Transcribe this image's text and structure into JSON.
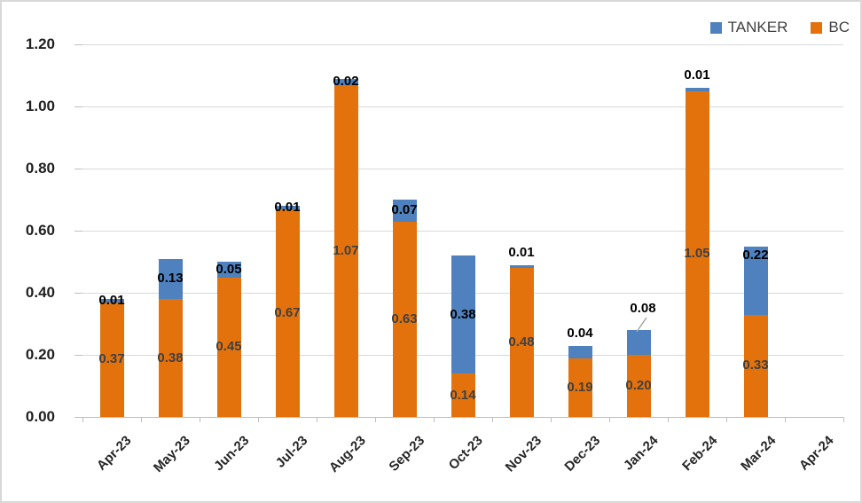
{
  "legend": {
    "items": [
      {
        "label": "TANKER",
        "color": "#4E81BD"
      },
      {
        "label": "BC",
        "color": "#E3720D"
      }
    ]
  },
  "chart_data": {
    "type": "bar",
    "stacked": true,
    "title": "",
    "xlabel": "",
    "ylabel": "",
    "categories": [
      "Apr-23",
      "May-23",
      "Jun-23",
      "Jul-23",
      "Aug-23",
      "Sep-23",
      "Oct-23",
      "Nov-23",
      "Dec-23",
      "Jan-24",
      "Feb-24",
      "Mar-24",
      "Apr-24"
    ],
    "series": [
      {
        "name": "BC",
        "color": "#E3720D",
        "label_color": "#404040",
        "values": [
          0.37,
          0.38,
          0.45,
          0.67,
          1.07,
          0.63,
          0.14,
          0.48,
          0.19,
          0.2,
          1.05,
          0.33,
          null
        ]
      },
      {
        "name": "TANKER",
        "color": "#4E81BD",
        "label_color": "#000000",
        "values": [
          0.01,
          0.13,
          0.05,
          0.01,
          0.02,
          0.07,
          0.38,
          0.01,
          0.04,
          0.08,
          0.01,
          0.22,
          null
        ]
      }
    ],
    "ylim": [
      0,
      1.2
    ],
    "ytick_step": 0.2,
    "ytick_labels": [
      "0.00",
      "0.20",
      "0.40",
      "0.60",
      "0.80",
      "1.00",
      "1.20"
    ],
    "grid": true,
    "legend_position": "top-right",
    "label_decimals": 2,
    "tanker_label_placement": [
      "center",
      "center",
      "center",
      "center",
      "center",
      "center",
      "center",
      "above",
      "above",
      "callout",
      "above",
      "top",
      null
    ],
    "callout_line_color": "#a6a6a6",
    "grid_color": "#d9d9d9",
    "axis_color": "#bfbfbf"
  }
}
